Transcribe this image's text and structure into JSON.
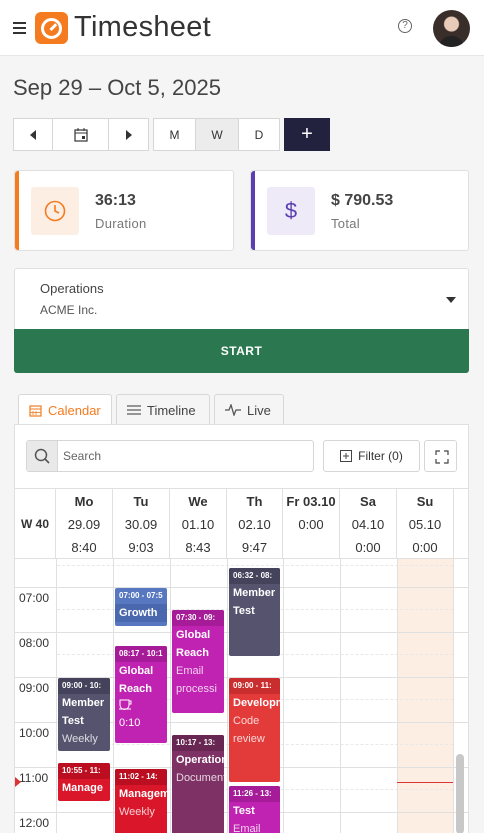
{
  "app": {
    "title": "Timesheet",
    "help": "?"
  },
  "date_range": "Sep 29 – Oct 5, 2025",
  "view_buttons": [
    "M",
    "W",
    "D"
  ],
  "add_label": "+",
  "duration": {
    "value": "36:13",
    "label": "Duration"
  },
  "total": {
    "value": "$ 790.53",
    "label": "Total"
  },
  "total_icon": "$",
  "project": {
    "name": "Operations",
    "client": "ACME Inc."
  },
  "start_label": "START",
  "tabs": [
    "Calendar",
    "Timeline",
    "Live"
  ],
  "search": {
    "placeholder": "Search"
  },
  "filter_label": "Filter (0)",
  "week_label": "W 40",
  "days": [
    {
      "name": "Mo",
      "date": "29.09",
      "total": "8:40"
    },
    {
      "name": "Tu",
      "date": "30.09",
      "total": "9:03"
    },
    {
      "name": "We",
      "date": "01.10",
      "total": "8:43"
    },
    {
      "name": "Th",
      "date": "02.10",
      "total": "9:47"
    },
    {
      "name": "Fr 03.10",
      "date": "",
      "total": "0:00"
    },
    {
      "name": "Sa",
      "date": "04.10",
      "total": "0:00"
    },
    {
      "name": "Su",
      "date": "05.10",
      "total": "0:00"
    }
  ],
  "hours": [
    "07:00",
    "08:00",
    "09:00",
    "10:00",
    "11:00",
    "12:00"
  ],
  "events": [
    {
      "id": "e1",
      "time": "07:00 - 07:5",
      "title": "Growth",
      "sub": "",
      "color": "#5778c0"
    },
    {
      "id": "e2",
      "time": "08:17 - 10:1",
      "title": "Global Reach",
      "sub": "0:10",
      "color": "#c023b1"
    },
    {
      "id": "e3",
      "time": "07:30 - 09:",
      "title": "Global Reach",
      "sub": "Email processi",
      "color": "#c023b1"
    },
    {
      "id": "e4",
      "time": "06:32 - 08:",
      "title": "Member Test",
      "sub": "",
      "color": "#56536f"
    },
    {
      "id": "e5",
      "time": "09:00 - 10:",
      "title": "Member Test",
      "sub": "Weekly",
      "color": "#56536f"
    },
    {
      "id": "e6",
      "time": "10:17 - 13:",
      "title": "Operations",
      "sub": "Document",
      "color": "#7d3164"
    },
    {
      "id": "e7",
      "time": "09:00 - 11:",
      "title": "Development",
      "sub": "Code review",
      "color": "#e33a3a"
    },
    {
      "id": "e8",
      "time": "10:55 - 11:",
      "title": "Manage",
      "sub": "",
      "color": "#d9162a"
    },
    {
      "id": "e9",
      "time": "11:02 - 14:",
      "title": "Management",
      "sub": "Weekly",
      "color": "#d9162a"
    },
    {
      "id": "e10",
      "time": "11:26 - 13:",
      "title": "Test",
      "sub": "Email",
      "color": "#c023b1"
    }
  ],
  "colors": {
    "accent": "#f47b20",
    "start": "#2b774f",
    "total": "#5b3fb0"
  }
}
